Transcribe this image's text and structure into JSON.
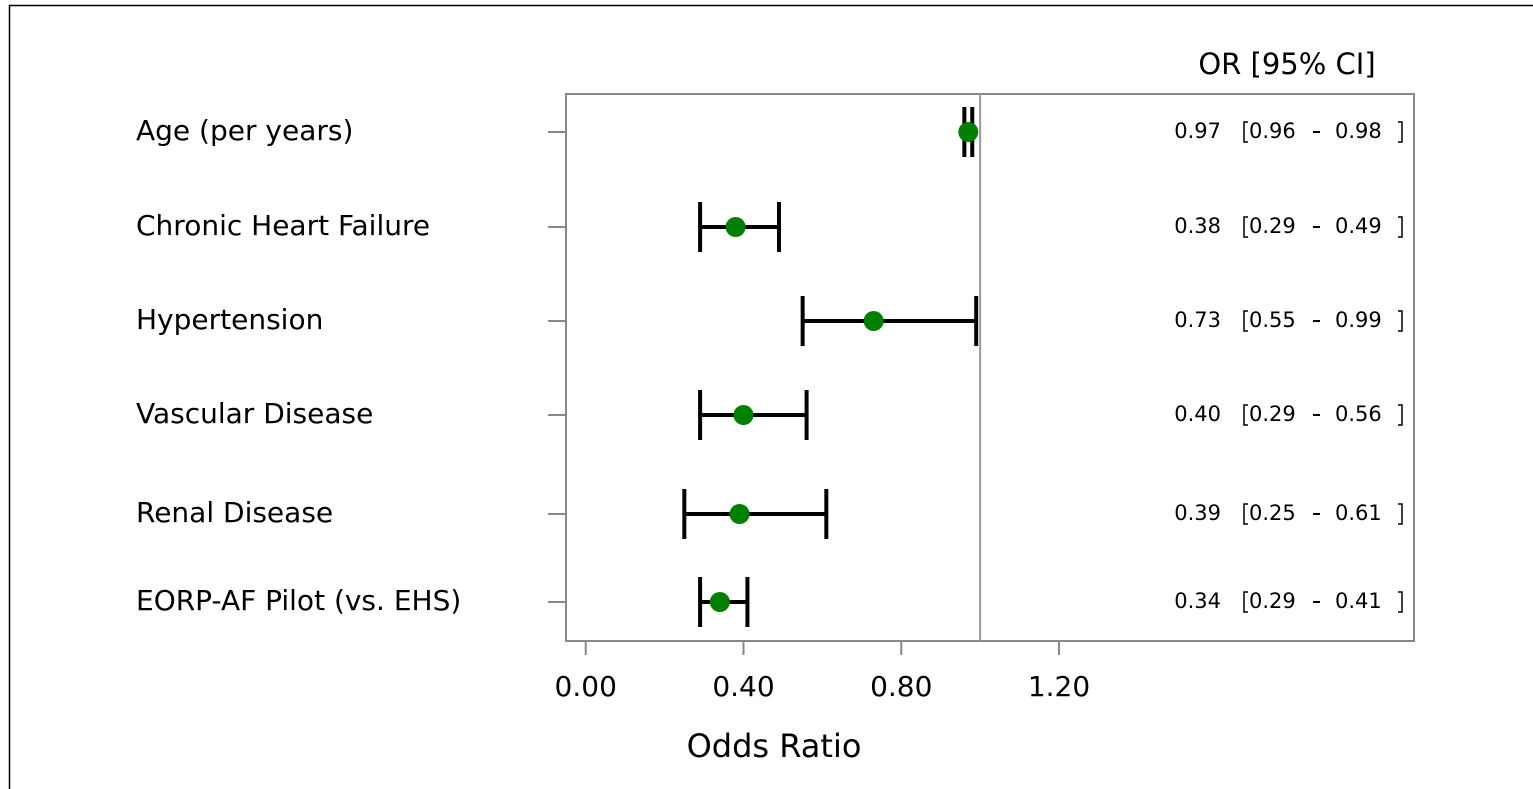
{
  "chart_data": {
    "type": "forest",
    "column_header": "OR [95% CI]",
    "x_label": "Odds Ratio",
    "categories": [
      "Age (per years)",
      "Chronic Heart Failure",
      "Hypertension",
      "Vascular Disease",
      "Renal Disease",
      "EORP-AF Pilot (vs. EHS)"
    ],
    "values": [
      0.97,
      0.38,
      0.73,
      0.4,
      0.39,
      0.34
    ],
    "value_labels": [
      "0.97",
      "0.38",
      "0.73",
      "0.40",
      "0.39",
      "0.34"
    ],
    "lower": [
      0.96,
      0.29,
      0.55,
      0.29,
      0.25,
      0.29
    ],
    "upper": [
      0.98,
      0.49,
      0.99,
      0.56,
      0.61,
      0.41
    ],
    "color": "#008000",
    "reference_line": 1,
    "xlim": [
      -0.05,
      2.1
    ],
    "xticks": [
      {
        "value": 0,
        "label": "0.00"
      },
      {
        "value": 0.4,
        "label": "0.40"
      },
      {
        "value": 0.8,
        "label": "0.80"
      },
      {
        "value": 1.2,
        "label": "1.20"
      }
    ]
  }
}
